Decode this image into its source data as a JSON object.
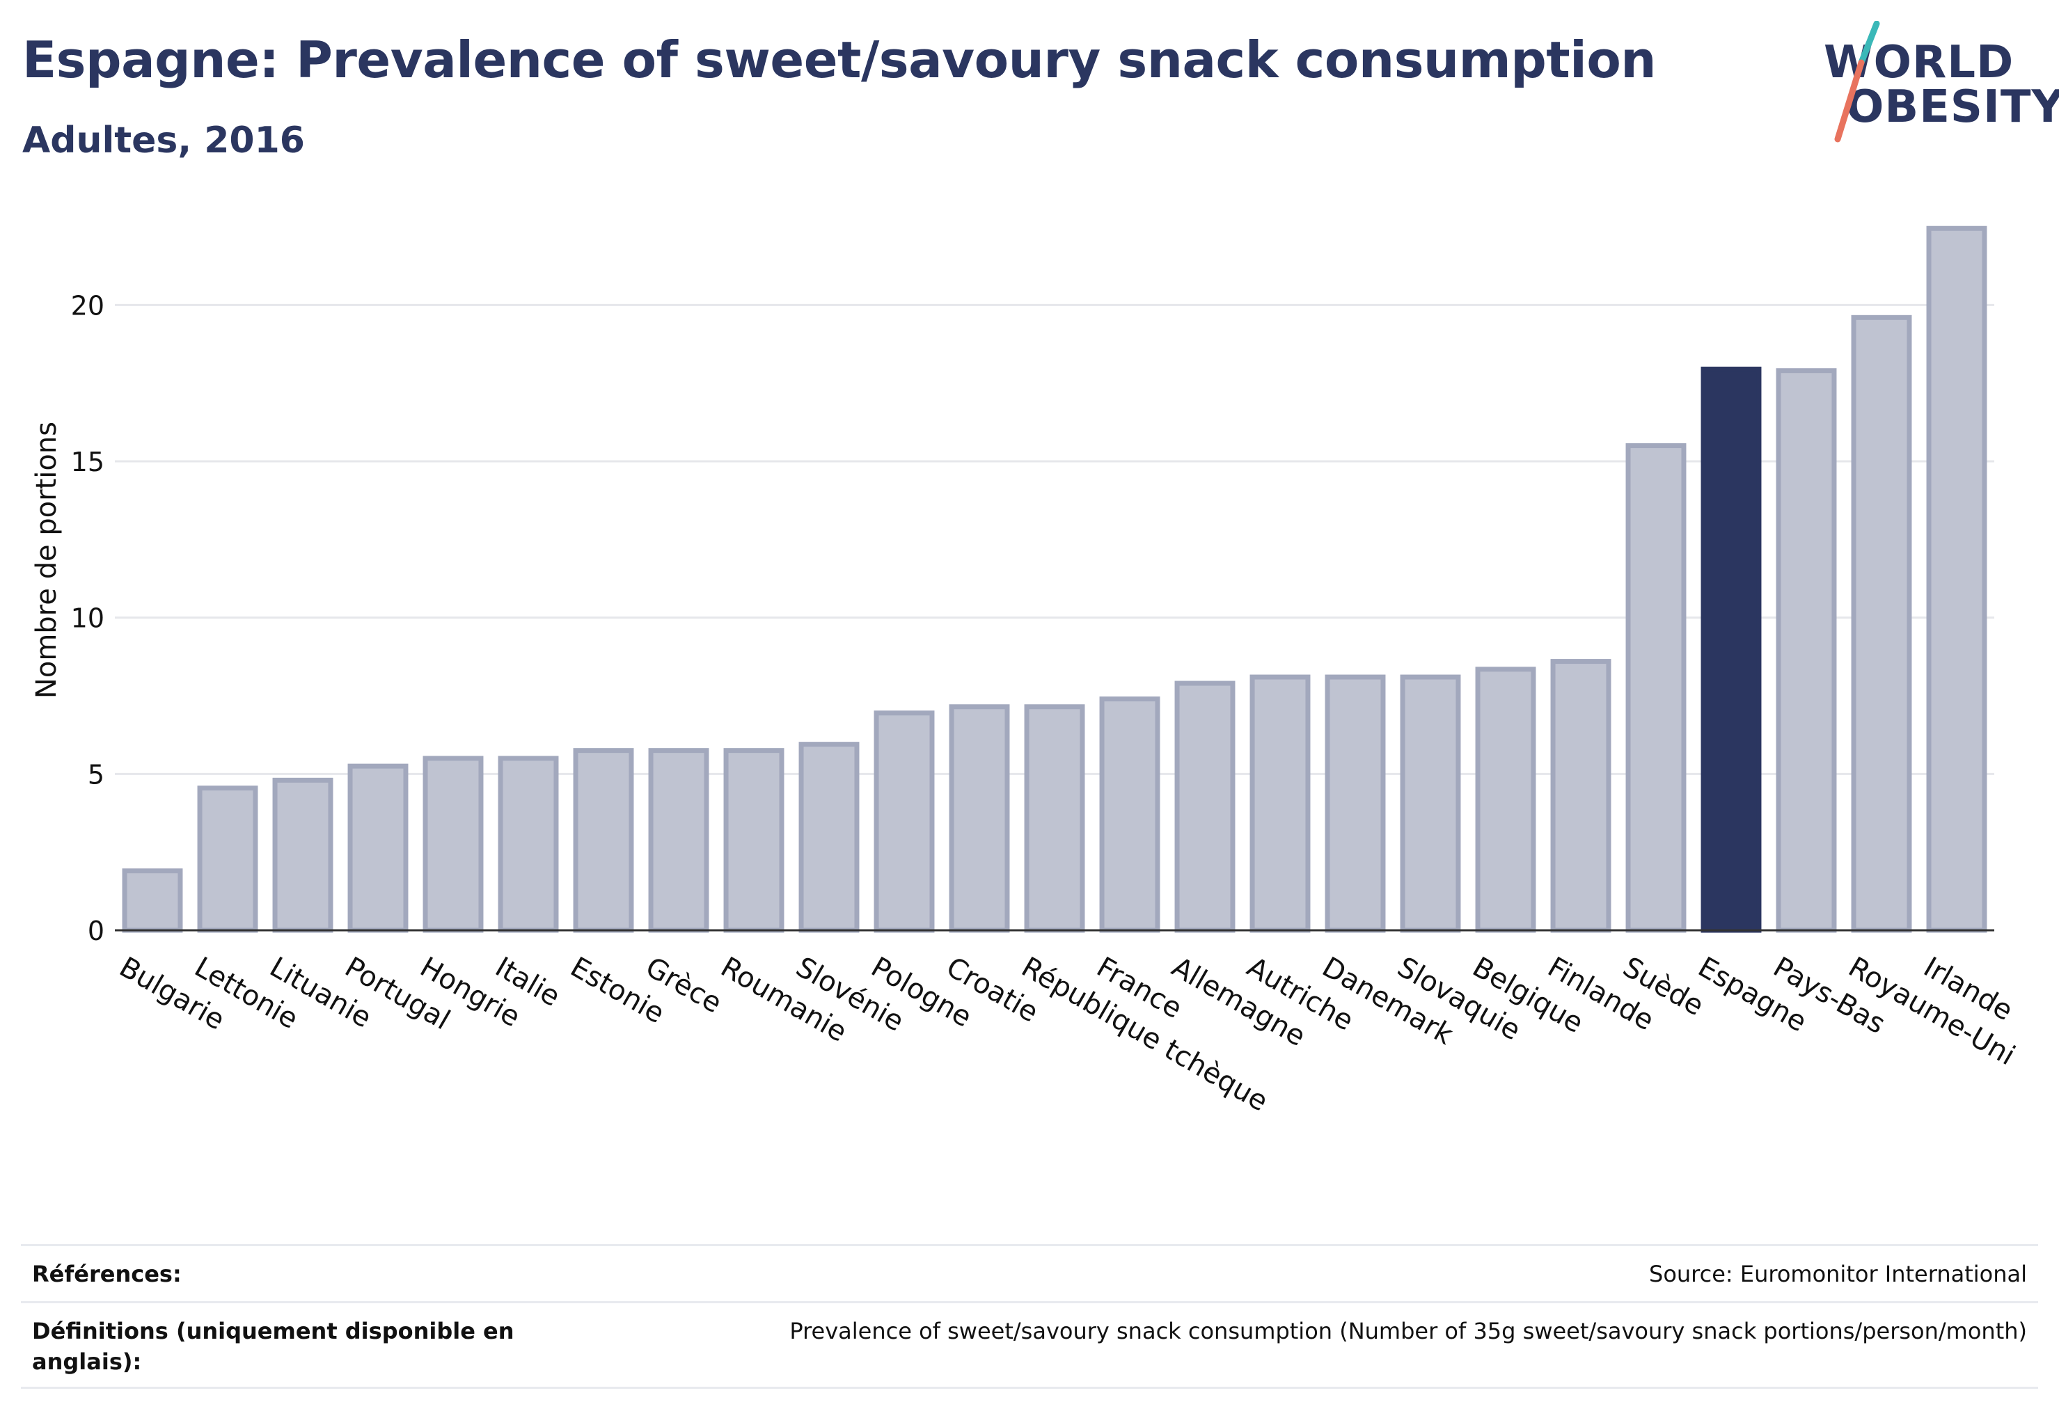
{
  "header": {
    "title": "Espagne: Prevalence of sweet/savoury snack consumption",
    "subtitle": "Adultes, 2016"
  },
  "logo": {
    "line1": "WORLD",
    "line2": "OBESITY",
    "accent_teal": "#3ab8b8",
    "accent_coral": "#e8735e"
  },
  "colors": {
    "bar": "#bfc3d1",
    "bar_stroke": "#a2a8bd",
    "highlight": "#2b3660",
    "grid": "#e6e7eb",
    "text": "#2b3660"
  },
  "chart_data": {
    "type": "bar",
    "ylabel": "Nombre de portions",
    "xlabel": "",
    "ylim": [
      0,
      22.5
    ],
    "yticks": [
      0,
      5,
      10,
      15,
      20
    ],
    "grid": true,
    "highlight": "Espagne",
    "categories": [
      "Bulgarie",
      "Lettonie",
      "Lituanie",
      "Portugal",
      "Hongrie",
      "Italie",
      "Estonie",
      "Grèce",
      "Roumanie",
      "Slovénie",
      "Pologne",
      "Croatie",
      "République tchèque",
      "France",
      "Allemagne",
      "Autriche",
      "Danemark",
      "Slovaquie",
      "Belgique",
      "Finlande",
      "Suède",
      "Espagne",
      "Pays-Bas",
      "Royaume-Uni",
      "Irlande"
    ],
    "values": [
      1.9,
      4.55,
      4.8,
      5.25,
      5.5,
      5.5,
      5.75,
      5.75,
      5.75,
      5.95,
      6.95,
      7.15,
      7.15,
      7.4,
      7.9,
      8.1,
      8.1,
      8.1,
      8.35,
      8.6,
      15.5,
      17.95,
      17.9,
      19.6,
      22.45
    ]
  },
  "references": {
    "label": "Références:",
    "value": "Source: Euromonitor International"
  },
  "definitions": {
    "label": "Définitions (uniquement disponible en anglais):",
    "value": "Prevalence of sweet/savoury snack consumption (Number of 35g sweet/savoury snack portions/person/month)"
  }
}
